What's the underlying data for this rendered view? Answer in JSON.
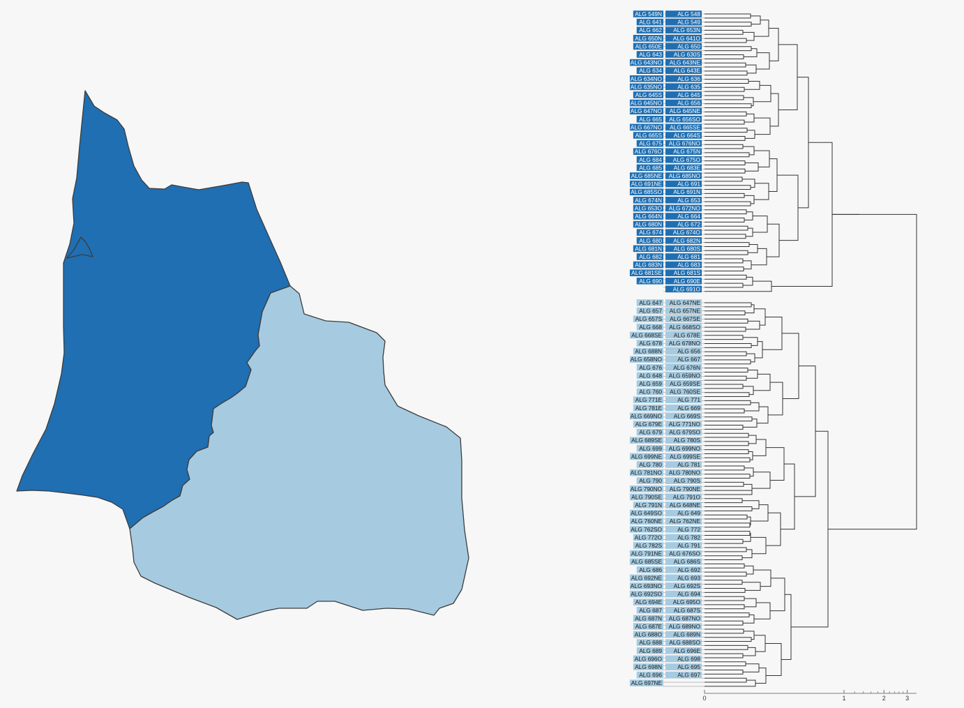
{
  "colors": {
    "background": "#f7f7f7",
    "cluster_1": "#1f6fb2",
    "cluster_2": "#a6cbe1",
    "outline": "#3c3c3c",
    "branch": "#333333",
    "label_text_light": "#ffffff",
    "label_text_dark": "#1a1a1a"
  },
  "map": {
    "regions": [
      {
        "name": "map-region-cluster-1",
        "cluster": 1
      },
      {
        "name": "map-region-cluster-2",
        "cluster": 2
      }
    ]
  },
  "dendrogram": {
    "clusters": [
      {
        "cluster": 1,
        "left_labels": [
          "ALG 549N",
          "ALG 641",
          "ALG 662",
          "ALG 650N",
          "ALG 650E",
          "ALG 643",
          "ALG 643NO",
          "ALG 634",
          "ALG 634NO",
          "ALG 635NO",
          "ALG 645S",
          "ALG 645NO",
          "ALG 647NO",
          "ALG 665",
          "ALG 667NO",
          "ALG 665S",
          "ALG 675",
          "ALG 676O",
          "ALG 684",
          "ALG 685",
          "ALG 685NE",
          "ALG 691NE",
          "ALG 685SO",
          "ALG 674N",
          "ALG 653O",
          "ALG 664N",
          "ALG 680N",
          "ALG 674",
          "ALG 680",
          "ALG 681N",
          "ALG 682",
          "ALG 683N",
          "ALG 681SE",
          "ALG 690"
        ],
        "right_labels": [
          "ALG 548",
          "ALG 549",
          "ALG 653N",
          "ALG 641O",
          "ALG 650",
          "ALG 630S",
          "ALG 643NE",
          "ALG 643E",
          "ALG 636",
          "ALG 635",
          "ALG 645",
          "ALG 656",
          "ALG 645NE",
          "ALG 656SO",
          "ALG 665SE",
          "ALG 664S",
          "ALG 676NO",
          "ALG 675N",
          "ALG 675O",
          "ALG 683E",
          "ALG 685NO",
          "ALG 691",
          "ALG 691N",
          "ALG 653",
          "ALG 672NO",
          "ALG 664",
          "ALG 672",
          "ALG 674O",
          "ALG 682N",
          "ALG 680S",
          "ALG 681",
          "ALG 683",
          "ALG 681S",
          "ALG 690E",
          "ALG 691O"
        ]
      },
      {
        "cluster": 2,
        "left_labels": [
          "ALG 647",
          "ALG 657",
          "ALG 657S",
          "ALG 668",
          "ALG 668SE",
          "ALG 678",
          "ALG 688N",
          "ALG 658NO",
          "ALG 676",
          "ALG 648",
          "ALG 659",
          "ALG 760",
          "ALG 771E",
          "ALG 781E",
          "ALG 669NO",
          "ALG 679E",
          "ALG 679",
          "ALG 689SE",
          "ALG 699",
          "ALG 699NE",
          "ALG 780",
          "ALG 781NO",
          "ALG 790",
          "ALG 790NO",
          "ALG 790SE",
          "ALG 791N",
          "ALG 649SO",
          "ALG 760NE",
          "ALG 762SO",
          "ALG 772O",
          "ALG 782S",
          "ALG 791NE",
          "ALG 685SE",
          "ALG 686",
          "ALG 692NE",
          "ALG 693NO",
          "ALG 692SO",
          "ALG 694E",
          "ALG 687",
          "ALG 687N",
          "ALG 687E",
          "ALG 688O",
          "ALG 688",
          "ALG 689",
          "ALG 696O",
          "ALG 698N",
          "ALG 696",
          "ALG 697NE"
        ],
        "right_labels": [
          "ALG 647NE",
          "ALG 657NE",
          "ALG 667SE",
          "ALG 668SO",
          "ALG 678E",
          "ALG 678NO",
          "ALG 656",
          "ALG 667",
          "ALG 676N",
          "ALG 659NO",
          "ALG 659SE",
          "ALG 760SE",
          "ALG 771",
          "ALG 669",
          "ALG 669S",
          "ALG 771NO",
          "ALG 679SO",
          "ALG 780S",
          "ALG 699NO",
          "ALG 699SE",
          "ALG 781",
          "ALG 780NO",
          "ALG 790S",
          "ALG 790NE",
          "ALG 791O",
          "ALG 648NE",
          "ALG 649",
          "ALG 762NE",
          "ALG 772",
          "ALG 782",
          "ALG 791",
          "ALG 676SO",
          "ALG 686S",
          "ALG 692",
          "ALG 693",
          "ALG 692S",
          "ALG 694",
          "ALG 695O",
          "ALG 687S",
          "ALG 687NO",
          "ALG 689NO",
          "ALG 689N",
          "ALG 688SO",
          "ALG 696E",
          "ALG 698",
          "ALG 695",
          "ALG 697"
        ]
      }
    ],
    "axis": {
      "scale": "log",
      "tick_labels": [
        "0",
        "1",
        "2",
        "3"
      ],
      "tick_values": [
        0,
        1,
        2,
        3
      ]
    }
  }
}
